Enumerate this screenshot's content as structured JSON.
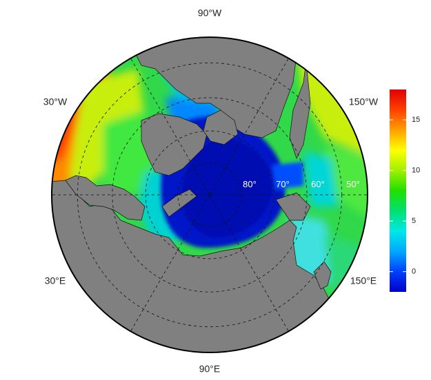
{
  "map": {
    "projection": "north polar stereographic",
    "land_color": "#808080",
    "graticule_style": "dashed",
    "longitude_labels": [
      {
        "text": "90°W",
        "lon": -90
      },
      {
        "text": "150°W",
        "lon": -150
      },
      {
        "text": "150°E",
        "lon": 150
      },
      {
        "text": "90°E",
        "lon": 90
      },
      {
        "text": "30°E",
        "lon": 30
      },
      {
        "text": "30°W",
        "lon": -30
      }
    ],
    "latitude_labels": [
      {
        "text": "80°",
        "lat": 80
      },
      {
        "text": "70°",
        "lat": 70
      },
      {
        "text": "60°",
        "lat": 60
      },
      {
        "text": "50°",
        "lat": 50
      }
    ]
  },
  "colorbar": {
    "ticks": [
      "0",
      "5",
      "10",
      "15"
    ],
    "tick_values": [
      0,
      5,
      10,
      15
    ],
    "range": [
      -2,
      18
    ],
    "colormap": [
      "#0000c8",
      "#0040ff",
      "#00a8ff",
      "#00e8e8",
      "#00e070",
      "#20e000",
      "#a0f000",
      "#ffff00",
      "#ffa000",
      "#ff4000",
      "#e00000"
    ]
  }
}
